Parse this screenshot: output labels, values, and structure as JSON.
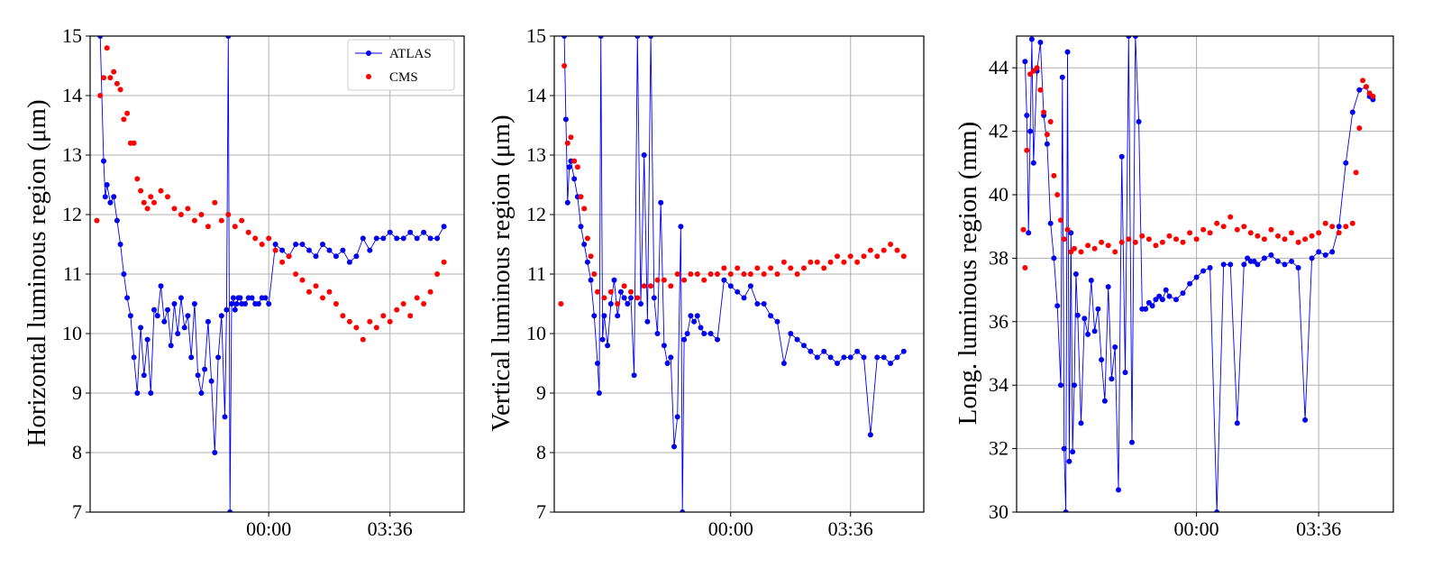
{
  "colors": {
    "atlas": "#0000ee",
    "cms": "#ff0000",
    "grid": "#b0b0b0"
  },
  "chart_data": [
    {
      "type": "scatter",
      "title": "",
      "xlabel": "",
      "ylabel": "Horizontal luminous region (μm)",
      "ylim": [
        7,
        15
      ],
      "yticks": [
        7,
        8,
        9,
        10,
        11,
        12,
        13,
        14,
        15
      ],
      "xlim": [
        -5.3,
        5.8
      ],
      "xticks": [
        {
          "value": 0,
          "label": "00:00"
        },
        {
          "value": 3.6,
          "label": "03:36"
        }
      ],
      "grid": true,
      "legend": "top-right",
      "series": [
        {
          "name": "ATLAS",
          "style": "line+markers",
          "x": [
            -5.0,
            -4.9,
            -4.85,
            -4.8,
            -4.7,
            -4.6,
            -4.5,
            -4.4,
            -4.3,
            -4.2,
            -4.1,
            -4.0,
            -3.9,
            -3.8,
            -3.7,
            -3.6,
            -3.5,
            -3.4,
            -3.3,
            -3.2,
            -3.1,
            -3.0,
            -2.9,
            -2.8,
            -2.7,
            -2.6,
            -2.5,
            -2.4,
            -2.3,
            -2.2,
            -2.1,
            -2.0,
            -1.9,
            -1.8,
            -1.7,
            -1.6,
            -1.5,
            -1.4,
            -1.3,
            -1.25,
            -1.2,
            -1.15,
            -1.1,
            -1.05,
            -1.0,
            -0.95,
            -0.9,
            -0.85,
            -0.8,
            -0.7,
            -0.6,
            -0.5,
            -0.4,
            -0.3,
            -0.2,
            -0.1,
            0.0,
            0.2,
            0.4,
            0.6,
            0.8,
            1.0,
            1.2,
            1.4,
            1.6,
            1.8,
            2.0,
            2.2,
            2.4,
            2.6,
            2.8,
            3.0,
            3.2,
            3.4,
            3.6,
            3.8,
            4.0,
            4.2,
            4.4,
            4.6,
            4.8,
            5.0,
            5.2
          ],
          "y": [
            15.0,
            12.9,
            12.3,
            12.5,
            12.2,
            12.3,
            11.9,
            11.5,
            11.0,
            10.6,
            10.3,
            9.6,
            9.0,
            10.1,
            9.3,
            9.9,
            9.0,
            10.4,
            10.3,
            10.8,
            10.2,
            10.4,
            9.8,
            10.5,
            10.0,
            10.6,
            10.1,
            10.3,
            9.6,
            10.5,
            9.3,
            9.0,
            9.4,
            10.2,
            9.2,
            8.0,
            9.6,
            10.3,
            8.6,
            10.4,
            15.0,
            7.0,
            10.5,
            10.6,
            10.4,
            10.5,
            10.6,
            10.6,
            10.5,
            10.5,
            10.6,
            10.6,
            10.5,
            10.5,
            10.6,
            10.6,
            10.5,
            11.5,
            11.4,
            11.3,
            11.5,
            11.5,
            11.4,
            11.3,
            11.5,
            11.4,
            11.3,
            11.4,
            11.2,
            11.3,
            11.6,
            11.4,
            11.6,
            11.6,
            11.7,
            11.6,
            11.6,
            11.7,
            11.6,
            11.7,
            11.6,
            11.6,
            11.8
          ]
        },
        {
          "name": "CMS",
          "style": "markers",
          "x": [
            -5.1,
            -5.0,
            -4.9,
            -4.8,
            -4.7,
            -4.6,
            -4.5,
            -4.4,
            -4.3,
            -4.2,
            -4.1,
            -4.0,
            -3.9,
            -3.8,
            -3.7,
            -3.6,
            -3.5,
            -3.4,
            -3.2,
            -3.0,
            -2.8,
            -2.6,
            -2.4,
            -2.2,
            -2.0,
            -1.8,
            -1.6,
            -1.4,
            -1.2,
            -1.0,
            -0.8,
            -0.6,
            -0.4,
            -0.2,
            0.0,
            0.2,
            0.4,
            0.6,
            0.8,
            1.0,
            1.2,
            1.4,
            1.6,
            1.8,
            2.0,
            2.2,
            2.4,
            2.6,
            2.8,
            3.0,
            3.2,
            3.4,
            3.6,
            3.8,
            4.0,
            4.2,
            4.4,
            4.6,
            4.8,
            5.0,
            5.2
          ],
          "y": [
            11.9,
            14.0,
            14.3,
            14.8,
            14.3,
            14.4,
            14.2,
            14.1,
            13.6,
            13.7,
            13.2,
            13.2,
            12.6,
            12.4,
            12.2,
            12.1,
            12.3,
            12.2,
            12.4,
            12.3,
            12.1,
            12.0,
            12.1,
            11.9,
            12.0,
            11.8,
            12.2,
            11.9,
            12.0,
            11.8,
            11.9,
            11.7,
            11.6,
            11.5,
            11.6,
            11.4,
            11.2,
            11.3,
            11.0,
            10.9,
            10.7,
            10.8,
            10.6,
            10.7,
            10.5,
            10.3,
            10.2,
            10.1,
            9.9,
            10.2,
            10.1,
            10.3,
            10.2,
            10.4,
            10.5,
            10.3,
            10.6,
            10.5,
            10.7,
            11.0,
            11.2
          ]
        }
      ]
    },
    {
      "type": "scatter",
      "title": "",
      "xlabel": "",
      "ylabel": "Vertical luminous region (μm)",
      "ylim": [
        7,
        15
      ],
      "yticks": [
        7,
        8,
        9,
        10,
        11,
        12,
        13,
        14,
        15
      ],
      "xlim": [
        -5.3,
        5.8
      ],
      "xticks": [
        {
          "value": 0,
          "label": "00:00"
        },
        {
          "value": 3.6,
          "label": "03:36"
        }
      ],
      "grid": true,
      "series": [
        {
          "name": "ATLAS",
          "style": "line+markers",
          "x": [
            -5.0,
            -4.95,
            -4.9,
            -4.85,
            -4.8,
            -4.7,
            -4.6,
            -4.5,
            -4.4,
            -4.3,
            -4.2,
            -4.1,
            -4.0,
            -3.95,
            -3.9,
            -3.85,
            -3.8,
            -3.7,
            -3.6,
            -3.5,
            -3.4,
            -3.3,
            -3.2,
            -3.1,
            -3.0,
            -2.9,
            -2.8,
            -2.7,
            -2.6,
            -2.5,
            -2.4,
            -2.3,
            -2.2,
            -2.1,
            -2.0,
            -1.9,
            -1.8,
            -1.7,
            -1.6,
            -1.5,
            -1.45,
            -1.4,
            -1.3,
            -1.2,
            -1.1,
            -1.0,
            -0.9,
            -0.8,
            -0.6,
            -0.4,
            -0.2,
            0.0,
            0.2,
            0.4,
            0.6,
            0.8,
            1.0,
            1.2,
            1.4,
            1.6,
            1.8,
            2.0,
            2.2,
            2.4,
            2.6,
            2.8,
            3.0,
            3.2,
            3.4,
            3.6,
            3.8,
            4.0,
            4.2,
            4.4,
            4.6,
            4.8,
            5.0,
            5.2
          ],
          "y": [
            15.0,
            13.6,
            12.2,
            12.8,
            12.9,
            12.6,
            12.3,
            11.8,
            11.5,
            11.2,
            10.9,
            10.3,
            9.5,
            9.0,
            15.0,
            9.9,
            10.3,
            9.8,
            10.5,
            10.9,
            10.3,
            10.7,
            10.6,
            10.5,
            10.6,
            9.3,
            15.0,
            10.5,
            13.0,
            10.2,
            15.0,
            10.6,
            10.0,
            12.2,
            9.8,
            9.5,
            9.6,
            8.1,
            8.6,
            11.8,
            7.0,
            9.9,
            10.0,
            10.3,
            10.2,
            10.3,
            10.1,
            10.0,
            10.0,
            9.9,
            10.9,
            10.8,
            10.7,
            10.6,
            10.8,
            10.5,
            10.5,
            10.3,
            10.2,
            9.5,
            10.0,
            9.9,
            9.8,
            9.7,
            9.6,
            9.7,
            9.6,
            9.5,
            9.6,
            9.6,
            9.7,
            9.6,
            8.3,
            9.6,
            9.6,
            9.5,
            9.6,
            9.7
          ]
        },
        {
          "name": "CMS",
          "style": "markers",
          "x": [
            -5.1,
            -5.0,
            -4.9,
            -4.8,
            -4.7,
            -4.6,
            -4.5,
            -4.4,
            -4.3,
            -4.2,
            -4.1,
            -4.0,
            -3.8,
            -3.6,
            -3.4,
            -3.2,
            -3.0,
            -2.8,
            -2.6,
            -2.4,
            -2.2,
            -2.0,
            -1.8,
            -1.6,
            -1.4,
            -1.2,
            -1.0,
            -0.8,
            -0.6,
            -0.4,
            -0.2,
            0.0,
            0.2,
            0.4,
            0.6,
            0.8,
            1.0,
            1.2,
            1.4,
            1.6,
            1.8,
            2.0,
            2.2,
            2.4,
            2.6,
            2.8,
            3.0,
            3.2,
            3.4,
            3.6,
            3.8,
            4.0,
            4.2,
            4.4,
            4.6,
            4.8,
            5.0,
            5.2
          ],
          "y": [
            10.5,
            14.5,
            13.2,
            13.3,
            12.9,
            12.8,
            12.3,
            12.1,
            11.6,
            11.3,
            11.0,
            10.7,
            10.6,
            10.7,
            10.5,
            10.8,
            10.7,
            10.6,
            10.8,
            10.8,
            10.9,
            10.9,
            10.8,
            11.0,
            10.9,
            11.0,
            11.0,
            10.9,
            11.0,
            11.0,
            11.1,
            11.0,
            11.1,
            11.0,
            11.0,
            11.1,
            11.0,
            11.1,
            11.0,
            11.2,
            11.1,
            11.0,
            11.1,
            11.2,
            11.2,
            11.1,
            11.2,
            11.3,
            11.2,
            11.3,
            11.2,
            11.3,
            11.4,
            11.3,
            11.4,
            11.5,
            11.4,
            11.3
          ]
        }
      ]
    },
    {
      "type": "scatter",
      "title": "",
      "xlabel": "",
      "ylabel": "Long. luminous region (mm)",
      "ylim": [
        30,
        45
      ],
      "yticks": [
        30,
        32,
        34,
        36,
        38,
        40,
        42,
        44
      ],
      "xlim": [
        -5.3,
        5.8
      ],
      "xticks": [
        {
          "value": 0,
          "label": "00:00"
        },
        {
          "value": 3.6,
          "label": "03:36"
        }
      ],
      "grid": true,
      "series": [
        {
          "name": "ATLAS",
          "style": "line+markers",
          "x": [
            -5.05,
            -5.0,
            -4.95,
            -4.9,
            -4.85,
            -4.8,
            -4.7,
            -4.6,
            -4.5,
            -4.4,
            -4.3,
            -4.2,
            -4.1,
            -4.0,
            -3.95,
            -3.9,
            -3.85,
            -3.8,
            -3.75,
            -3.7,
            -3.65,
            -3.6,
            -3.55,
            -3.5,
            -3.4,
            -3.3,
            -3.2,
            -3.1,
            -3.0,
            -2.9,
            -2.8,
            -2.7,
            -2.6,
            -2.5,
            -2.4,
            -2.3,
            -2.2,
            -2.1,
            -2.0,
            -1.9,
            -1.8,
            -1.7,
            -1.6,
            -1.5,
            -1.4,
            -1.3,
            -1.2,
            -1.1,
            -1.0,
            -0.9,
            -0.8,
            -0.6,
            -0.4,
            -0.2,
            0.0,
            0.2,
            0.4,
            0.6,
            0.8,
            1.0,
            1.2,
            1.4,
            1.5,
            1.6,
            1.7,
            1.8,
            2.0,
            2.2,
            2.4,
            2.6,
            2.8,
            3.0,
            3.2,
            3.4,
            3.6,
            3.8,
            4.0,
            4.2,
            4.4,
            4.6,
            4.8,
            5.0,
            5.1,
            5.2
          ],
          "y": [
            44.2,
            42.5,
            38.8,
            42.0,
            44.9,
            41.0,
            43.9,
            44.8,
            42.5,
            41.6,
            39.1,
            38.0,
            36.5,
            34.0,
            43.7,
            32.0,
            30.0,
            44.5,
            31.6,
            38.8,
            31.9,
            34.0,
            37.5,
            36.2,
            32.8,
            36.1,
            35.6,
            37.3,
            35.7,
            36.4,
            34.8,
            33.5,
            37.1,
            34.2,
            35.2,
            30.7,
            41.2,
            34.4,
            45.0,
            32.2,
            45.0,
            42.3,
            36.4,
            36.4,
            36.6,
            36.5,
            36.7,
            36.8,
            36.7,
            37.0,
            36.8,
            36.7,
            36.9,
            37.2,
            37.4,
            37.6,
            37.7,
            30.0,
            37.8,
            37.8,
            32.8,
            37.8,
            38.0,
            37.9,
            37.9,
            37.8,
            38.0,
            38.1,
            37.9,
            37.8,
            37.9,
            37.7,
            32.9,
            38.0,
            38.2,
            38.1,
            38.2,
            39.0,
            41.0,
            42.6,
            43.3,
            43.4,
            43.1,
            43.0
          ]
        },
        {
          "name": "CMS",
          "style": "markers",
          "x": [
            -5.1,
            -5.05,
            -5.0,
            -4.9,
            -4.8,
            -4.7,
            -4.6,
            -4.5,
            -4.4,
            -4.3,
            -4.2,
            -4.1,
            -4.0,
            -3.9,
            -3.8,
            -3.7,
            -3.6,
            -3.4,
            -3.2,
            -3.0,
            -2.8,
            -2.6,
            -2.4,
            -2.2,
            -2.0,
            -1.8,
            -1.6,
            -1.4,
            -1.2,
            -1.0,
            -0.8,
            -0.6,
            -0.4,
            -0.2,
            0.0,
            0.2,
            0.4,
            0.6,
            0.8,
            1.0,
            1.2,
            1.4,
            1.6,
            1.8,
            2.0,
            2.2,
            2.4,
            2.6,
            2.8,
            3.0,
            3.2,
            3.4,
            3.6,
            3.8,
            4.0,
            4.2,
            4.4,
            4.6,
            4.7,
            4.8,
            4.9,
            5.0,
            5.1,
            5.2
          ],
          "y": [
            38.9,
            37.7,
            41.4,
            43.8,
            43.9,
            44.0,
            43.3,
            42.6,
            41.9,
            42.3,
            40.6,
            40.0,
            39.2,
            38.6,
            38.9,
            38.2,
            38.3,
            38.2,
            38.4,
            38.3,
            38.5,
            38.4,
            38.2,
            38.5,
            38.6,
            38.5,
            38.7,
            38.6,
            38.4,
            38.5,
            38.7,
            38.6,
            38.5,
            38.8,
            38.6,
            38.9,
            38.8,
            39.1,
            39.0,
            39.3,
            38.9,
            39.0,
            38.8,
            38.7,
            38.6,
            38.9,
            38.7,
            38.6,
            38.8,
            38.5,
            38.6,
            38.7,
            38.8,
            39.1,
            39.0,
            38.8,
            39.0,
            39.1,
            40.7,
            42.1,
            43.6,
            43.4,
            43.2,
            43.1
          ]
        }
      ]
    }
  ]
}
